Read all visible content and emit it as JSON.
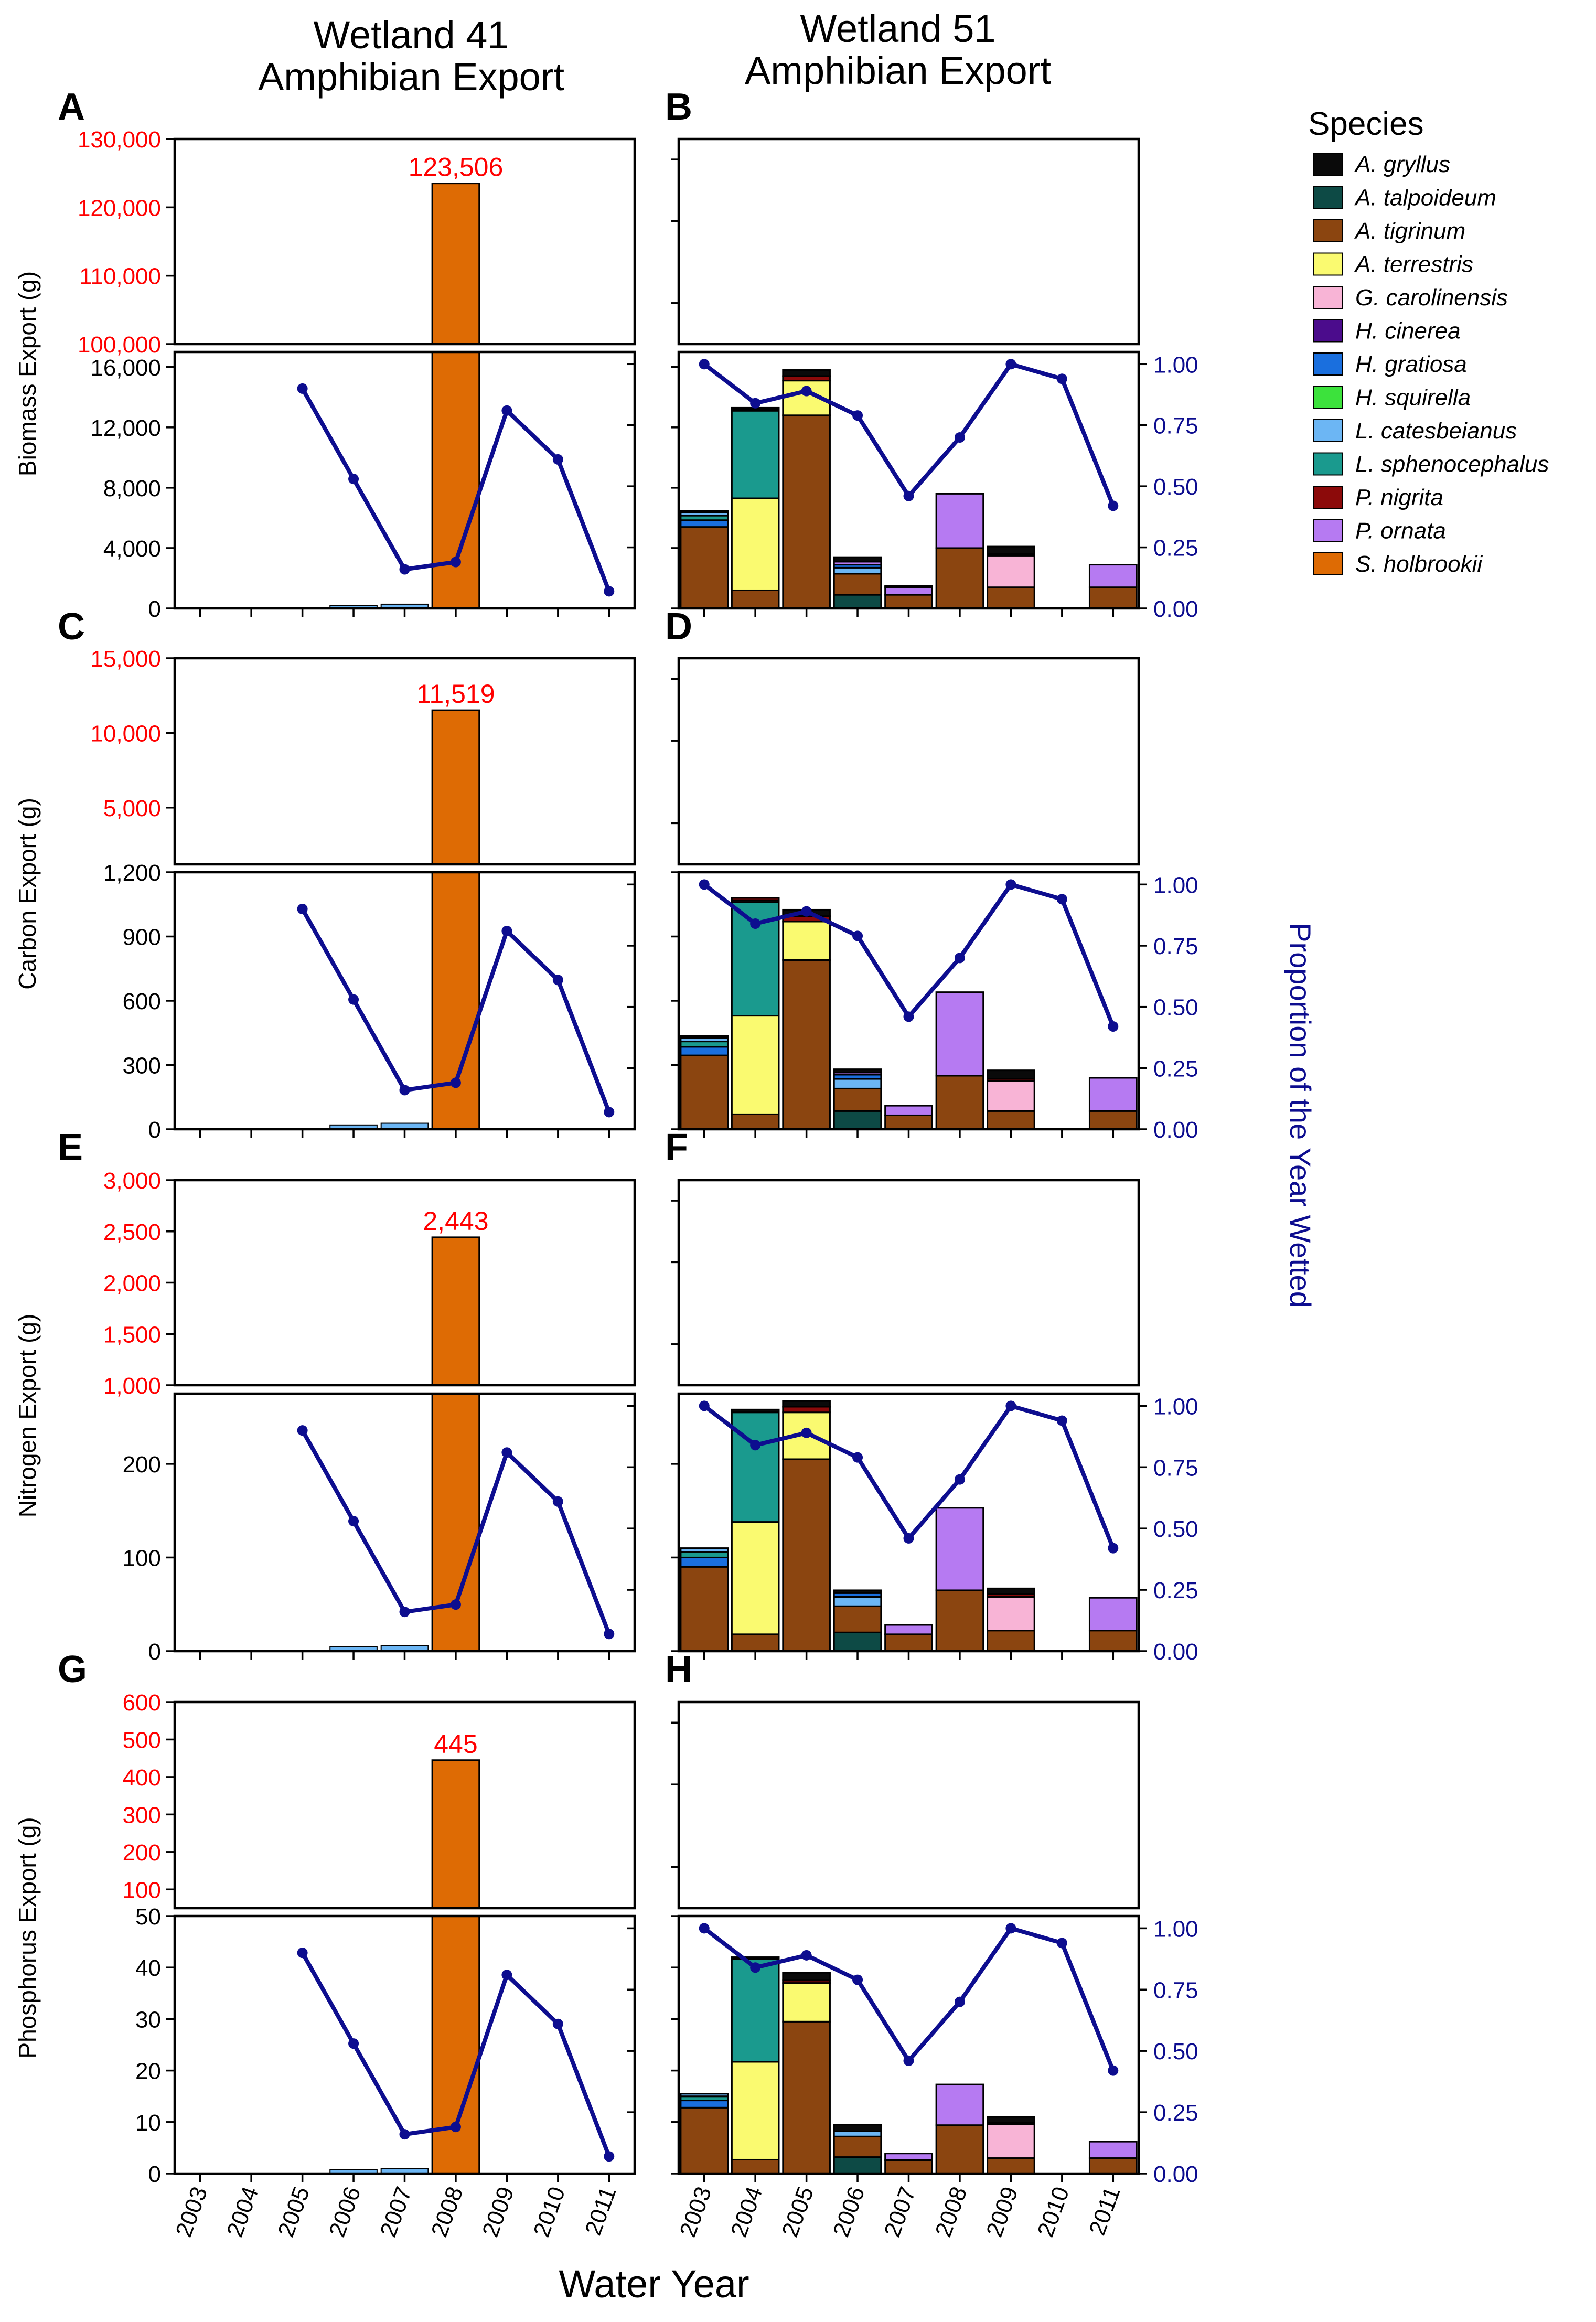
{
  "title_w41": [
    "Wetland 41",
    "Amphibian Export"
  ],
  "title_w51": [
    "Wetland 51",
    "Amphibian Export"
  ],
  "legend_title": "Species",
  "species": [
    {
      "name": "A. gryllus",
      "color": "#0a0a0a"
    },
    {
      "name": "A. talpoideum",
      "color": "#0d4a45"
    },
    {
      "name": "A. tigrinum",
      "color": "#8b4510"
    },
    {
      "name": "A. terrestris",
      "color": "#fafa70"
    },
    {
      "name": "G. carolinensis",
      "color": "#f8b4d6"
    },
    {
      "name": "H. cinerea",
      "color": "#4b0c8c"
    },
    {
      "name": "H. gratiosa",
      "color": "#1a6fde"
    },
    {
      "name": "H. squirella",
      "color": "#3ce23c"
    },
    {
      "name": "L. catesbeianus",
      "color": "#6cb6f4"
    },
    {
      "name": "L. sphenocephalus",
      "color": "#1a9a8e"
    },
    {
      "name": "P. nigrita",
      "color": "#8c0a0a"
    },
    {
      "name": "P. ornata",
      "color": "#b67af2"
    },
    {
      "name": "S. holbrookii",
      "color": "#de6b04"
    }
  ],
  "x_axis_label": "Water Year",
  "right_axis_label": "Proportion of the Year Wetted",
  "years": [
    "2003",
    "2004",
    "2005",
    "2006",
    "2007",
    "2008",
    "2009",
    "2010",
    "2011"
  ],
  "colors": {
    "axis_red": "#ff0000",
    "line_blue": "#0d0d8f",
    "outlier_bar": "#de6b04"
  },
  "chart_data": {
    "type": "bar",
    "description_axis_right": [
      0.0,
      0.25,
      0.5,
      0.75,
      1.0
    ],
    "right_ticks": [
      "0.00",
      "0.25",
      "0.50",
      "0.75",
      "1.00"
    ],
    "proportion_wetted": {
      "wetland41": {
        "years": [
          "2005",
          "2006",
          "2007",
          "2008",
          "2009",
          "2010",
          "2011"
        ],
        "values": [
          0.9,
          0.53,
          0.16,
          0.19,
          0.81,
          0.61,
          0.07
        ]
      },
      "wetland51": {
        "years": [
          "2003",
          "2004",
          "2005",
          "2006",
          "2007",
          "2008",
          "2009",
          "2010",
          "2011"
        ],
        "values": [
          1.0,
          0.84,
          0.89,
          0.79,
          0.46,
          0.7,
          1.0,
          0.94,
          0.42
        ]
      }
    },
    "rows": [
      {
        "ylabel": "Biomass Export (g)",
        "letters": [
          "A",
          "B"
        ],
        "upper_ylim": [
          100000,
          130000
        ],
        "upper_ticks": [
          "100,000",
          "110,000",
          "120,000",
          "130,000"
        ],
        "lower_ylim": [
          0,
          17000
        ],
        "lower_ticks": [
          "0",
          "4,000",
          "8,000",
          "12,000",
          "16,000"
        ],
        "outlier_label": "123,506",
        "w41": {
          "year": "2008",
          "holbrookii": 123506,
          "small": {
            "2006": 200,
            "2007": 280
          }
        },
        "w51": {
          "2003": [
            [
              "A. tigrinum",
              5400
            ],
            [
              "H. gratiosa",
              450
            ],
            [
              "L. sphenocephalus",
              300
            ],
            [
              "L. catesbeianus",
              200
            ],
            [
              "A. gryllus",
              100
            ]
          ],
          "2004": [
            [
              "A. tigrinum",
              1200
            ],
            [
              "A. terrestris",
              6100
            ],
            [
              "L. sphenocephalus",
              5800
            ],
            [
              "L. catesbeianus",
              100
            ],
            [
              "A. gryllus",
              100
            ]
          ],
          "2005": [
            [
              "A. tigrinum",
              12800
            ],
            [
              "A. terrestris",
              2300
            ],
            [
              "P. nigrita",
              300
            ],
            [
              "A. gryllus",
              400
            ]
          ],
          "2006": [
            [
              "A. talpoideum",
              900
            ],
            [
              "A. tigrinum",
              1400
            ],
            [
              "L. catesbeianus",
              400
            ],
            [
              "H. gratiosa",
              200
            ],
            [
              "P. ornata",
              200
            ],
            [
              "A. gryllus",
              300
            ]
          ],
          "2007": [
            [
              "A. tigrinum",
              900
            ],
            [
              "P. ornata",
              500
            ],
            [
              "A. gryllus",
              100
            ]
          ],
          "2008": [
            [
              "A. tigrinum",
              4000
            ],
            [
              "P. ornata",
              3600
            ]
          ],
          "2009": [
            [
              "A. tigrinum",
              1400
            ],
            [
              "G. carolinensis",
              2100
            ],
            [
              "P. nigrita",
              100
            ],
            [
              "A. gryllus",
              500
            ]
          ],
          "2010": [],
          "2011": [
            [
              "A. tigrinum",
              1400
            ],
            [
              "P. ornata",
              1500
            ]
          ]
        }
      },
      {
        "ylabel": "Carbon Export (g)",
        "letters": [
          "C",
          "D"
        ],
        "upper_ylim": [
          1200,
          15000
        ],
        "upper_ticks": [
          "5,000",
          "10,000",
          "15,000"
        ],
        "lower_ylim": [
          0,
          1200
        ],
        "lower_ticks": [
          "0",
          "300",
          "600",
          "900",
          "1,200"
        ],
        "outlier_label": "11,519",
        "w41": {
          "year": "2008",
          "holbrookii": 11519,
          "small": {
            "2006": 20,
            "2007": 28
          }
        },
        "w51": {
          "2003": [
            [
              "A. tigrinum",
              345
            ],
            [
              "H. gratiosa",
              40
            ],
            [
              "L. sphenocephalus",
              25
            ],
            [
              "L. catesbeianus",
              15
            ],
            [
              "A. gryllus",
              10
            ]
          ],
          "2004": [
            [
              "A. tigrinum",
              70
            ],
            [
              "A. terrestris",
              460
            ],
            [
              "L. sphenocephalus",
              530
            ],
            [
              "A. gryllus",
              10
            ],
            [
              "P. nigrita",
              10
            ]
          ],
          "2005": [
            [
              "A. tigrinum",
              790
            ],
            [
              "A. terrestris",
              180
            ],
            [
              "P. nigrita",
              25
            ],
            [
              "A. gryllus",
              30
            ]
          ],
          "2006": [
            [
              "A. talpoideum",
              85
            ],
            [
              "A. tigrinum",
              105
            ],
            [
              "L. catesbeianus",
              45
            ],
            [
              "H. gratiosa",
              20
            ],
            [
              "P. ornata",
              10
            ],
            [
              "A. gryllus",
              15
            ]
          ],
          "2007": [
            [
              "A. tigrinum",
              65
            ],
            [
              "P. ornata",
              45
            ]
          ],
          "2008": [
            [
              "A. tigrinum",
              250
            ],
            [
              "P. ornata",
              390
            ]
          ],
          "2009": [
            [
              "A. tigrinum",
              85
            ],
            [
              "G. carolinensis",
              140
            ],
            [
              "P. nigrita",
              10
            ],
            [
              "A. gryllus",
              40
            ]
          ],
          "2010": [],
          "2011": [
            [
              "A. tigrinum",
              85
            ],
            [
              "P. ornata",
              155
            ]
          ]
        }
      },
      {
        "ylabel": "Nitrogen Export (g)",
        "letters": [
          "E",
          "F"
        ],
        "upper_ylim": [
          1000,
          3000
        ],
        "upper_ticks": [
          "1,000",
          "1,500",
          "2,000",
          "2,500",
          "3,000"
        ],
        "lower_ylim": [
          0,
          275
        ],
        "lower_ticks": [
          "0",
          "100",
          "200"
        ],
        "outlier_label": "2,443",
        "w41": {
          "year": "2008",
          "holbrookii": 2443,
          "small": {
            "2006": 5,
            "2007": 6
          }
        },
        "w51": {
          "2003": [
            [
              "A. tigrinum",
              90
            ],
            [
              "H. gratiosa",
              10
            ],
            [
              "L. sphenocephalus",
              6
            ],
            [
              "L. catesbeianus",
              4
            ]
          ],
          "2004": [
            [
              "A. tigrinum",
              18
            ],
            [
              "A. terrestris",
              120
            ],
            [
              "L. sphenocephalus",
              117
            ],
            [
              "A. gryllus",
              3
            ]
          ],
          "2005": [
            [
              "A. tigrinum",
              205
            ],
            [
              "A. terrestris",
              50
            ],
            [
              "P. nigrita",
              6
            ],
            [
              "A. gryllus",
              6
            ]
          ],
          "2006": [
            [
              "A. talpoideum",
              20
            ],
            [
              "A. tigrinum",
              28
            ],
            [
              "L. catesbeianus",
              10
            ],
            [
              "H. gratiosa",
              4
            ],
            [
              "A. gryllus",
              3
            ]
          ],
          "2007": [
            [
              "A. tigrinum",
              18
            ],
            [
              "P. ornata",
              10
            ]
          ],
          "2008": [
            [
              "A. tigrinum",
              65
            ],
            [
              "P. ornata",
              88
            ]
          ],
          "2009": [
            [
              "A. tigrinum",
              22
            ],
            [
              "G. carolinensis",
              36
            ],
            [
              "P. nigrita",
              3
            ],
            [
              "A. gryllus",
              6
            ]
          ],
          "2010": [],
          "2011": [
            [
              "A. tigrinum",
              22
            ],
            [
              "P. ornata",
              35
            ]
          ]
        }
      },
      {
        "ylabel": "Phosphorus Export (g)",
        "letters": [
          "G",
          "H"
        ],
        "upper_ylim": [
          50,
          600
        ],
        "upper_ticks": [
          "100",
          "200",
          "300",
          "400",
          "500",
          "600"
        ],
        "lower_ylim": [
          0,
          50
        ],
        "lower_ticks": [
          "0",
          "10",
          "20",
          "30",
          "40",
          "50"
        ],
        "outlier_label": "445",
        "w41": {
          "year": "2008",
          "holbrookii": 445,
          "small": {
            "2006": 0.8,
            "2007": 1.0
          }
        },
        "w51": {
          "2003": [
            [
              "A. tigrinum",
              12.8
            ],
            [
              "H. gratiosa",
              1.4
            ],
            [
              "L. sphenocephalus",
              0.8
            ],
            [
              "L. catesbeianus",
              0.5
            ]
          ],
          "2004": [
            [
              "A. tigrinum",
              2.7
            ],
            [
              "A. terrestris",
              19
            ],
            [
              "L. sphenocephalus",
              20
            ],
            [
              "A. gryllus",
              0.3
            ]
          ],
          "2005": [
            [
              "A. tigrinum",
              29.5
            ],
            [
              "A. terrestris",
              7.5
            ],
            [
              "P. nigrita",
              0.5
            ],
            [
              "A. gryllus",
              1.5
            ]
          ],
          "2006": [
            [
              "A. talpoideum",
              3.2
            ],
            [
              "A. tigrinum",
              4
            ],
            [
              "L. catesbeianus",
              1
            ],
            [
              "A. gryllus",
              1.3
            ]
          ],
          "2007": [
            [
              "A. tigrinum",
              2.6
            ],
            [
              "P. ornata",
              1.3
            ]
          ],
          "2008": [
            [
              "A. tigrinum",
              9.4
            ],
            [
              "P. ornata",
              7.9
            ]
          ],
          "2009": [
            [
              "A. tigrinum",
              3
            ],
            [
              "G. carolinensis",
              6.6
            ],
            [
              "P. nigrita",
              0.3
            ],
            [
              "A. gryllus",
              1.1
            ]
          ],
          "2010": [],
          "2011": [
            [
              "A. tigrinum",
              3
            ],
            [
              "P. ornata",
              3.2
            ]
          ]
        }
      }
    ]
  }
}
